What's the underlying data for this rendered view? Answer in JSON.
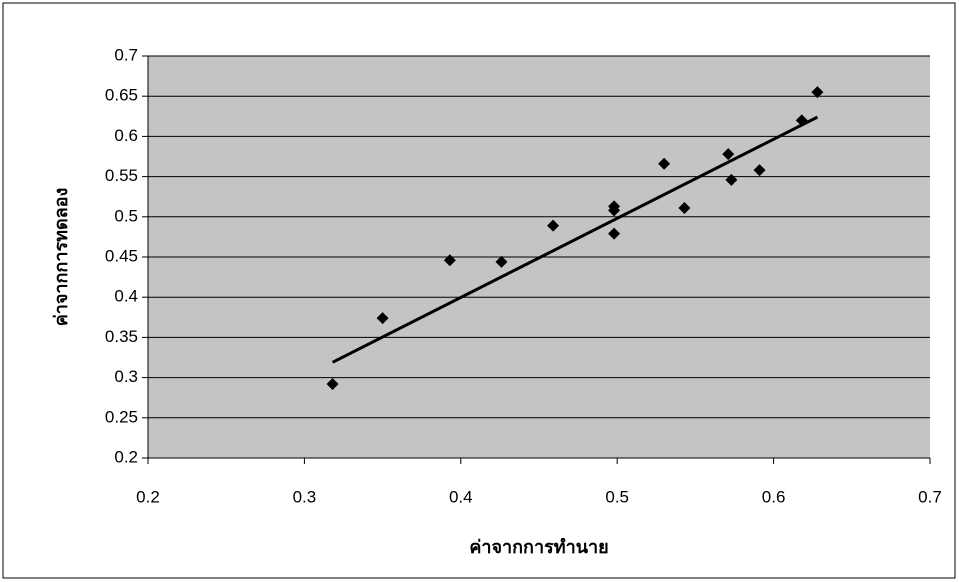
{
  "chart_data": {
    "type": "scatter",
    "x_label": "ค่าจากการทำนาย",
    "y_label": "ค่าจากการทดลอง",
    "series": [
      {
        "color": "#000000",
        "x": [
          0.318,
          0.35,
          0.393,
          0.426,
          0.459,
          0.498,
          0.498,
          0.498,
          0.53,
          0.543,
          0.571,
          0.573,
          0.591,
          0.618,
          0.628
        ],
        "values": [
          0.292,
          0.374,
          0.446,
          0.444,
          0.489,
          0.513,
          0.508,
          0.479,
          0.566,
          0.511,
          0.578,
          0.546,
          0.558,
          0.62,
          0.655
        ]
      }
    ],
    "trendline": {
      "color": "#000000",
      "x": [
        0.318,
        0.628
      ],
      "values": [
        0.319,
        0.624
      ]
    },
    "xlim": [
      0.2,
      0.7
    ],
    "xticks": [
      0.2,
      0.3,
      0.4,
      0.5,
      0.6,
      0.7
    ],
    "ylim": [
      0.2,
      0.7
    ],
    "yticks": [
      0.2,
      0.25,
      0.3,
      0.35,
      0.4,
      0.45,
      0.5,
      0.55,
      0.6,
      0.65,
      0.7
    ],
    "grid": true
  }
}
